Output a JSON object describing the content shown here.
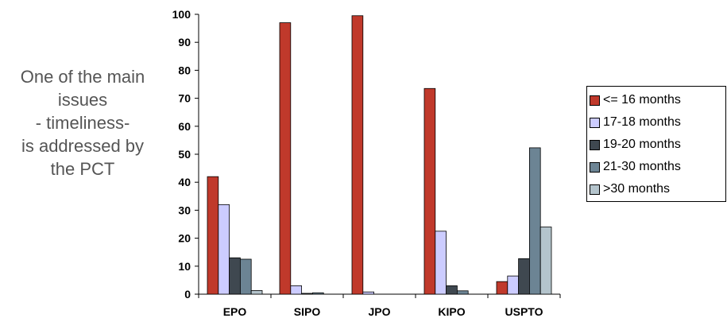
{
  "side_note": {
    "lines": [
      "One of the main",
      "issues",
      "- timeliness-",
      "is addressed by",
      "the PCT"
    ]
  },
  "chart_data": {
    "type": "bar",
    "title": "",
    "xlabel": "",
    "ylabel": "",
    "ylim": [
      0,
      100
    ],
    "yticks": [
      0,
      10,
      20,
      30,
      40,
      50,
      60,
      70,
      80,
      90,
      100
    ],
    "grid": false,
    "legend": "right",
    "categories": [
      "EPO",
      "SIPO",
      "JPO",
      "KIPO",
      "USPTO"
    ],
    "series": [
      {
        "name": "<= 16 months",
        "color": "#C0392B",
        "values": [
          42,
          97,
          99.5,
          73.5,
          4.5
        ]
      },
      {
        "name": "17-18 months",
        "color": "#CCCCFF",
        "values": [
          32,
          3,
          0.8,
          22.5,
          6.5
        ]
      },
      {
        "name": "19-20 months",
        "color": "#3F4850",
        "values": [
          13,
          0.3,
          0,
          3,
          12.7
        ]
      },
      {
        "name": "21-30 months",
        "color": "#6C8494",
        "values": [
          12.5,
          0.5,
          0,
          1.2,
          52.3
        ]
      },
      {
        "name": ">30 months",
        "color": "#B4C4CC",
        "values": [
          1.3,
          0,
          0,
          0,
          24
        ]
      }
    ]
  }
}
